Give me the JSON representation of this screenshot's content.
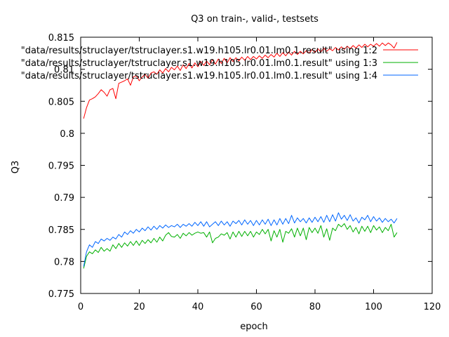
{
  "chart_data": {
    "type": "line",
    "title": "Q3 on train-, valid-, testsets",
    "xlabel": "epoch",
    "ylabel": "Q3",
    "xlim": [
      0,
      120
    ],
    "ylim": [
      0.775,
      0.815
    ],
    "x_ticks": [
      "0",
      "20",
      "40",
      "60",
      "80",
      "100",
      "120"
    ],
    "y_ticks": [
      "0.775",
      "0.78",
      "0.785",
      "0.79",
      "0.795",
      "0.8",
      "0.805",
      "0.81",
      "0.815"
    ],
    "grid": false,
    "legend_position": "top-right",
    "series": [
      {
        "name": "\"data/results/struclayer/tstruclayer.s1.w19.h105.lr0.01.lm0.1.result\" using 1:2",
        "color": "#ff0000",
        "x": [
          1,
          2,
          3,
          4,
          5,
          6,
          7,
          8,
          9,
          10,
          11,
          12,
          13,
          14,
          15,
          16,
          17,
          18,
          19,
          20,
          21,
          22,
          23,
          24,
          25,
          26,
          27,
          28,
          29,
          30,
          31,
          32,
          33,
          34,
          35,
          36,
          37,
          38,
          39,
          40,
          41,
          42,
          43,
          44,
          45,
          46,
          47,
          48,
          49,
          50,
          51,
          52,
          53,
          54,
          55,
          56,
          57,
          58,
          59,
          60,
          61,
          62,
          63,
          64,
          65,
          66,
          67,
          68,
          69,
          70,
          71,
          72,
          73,
          74,
          75,
          76,
          77,
          78,
          79,
          80,
          81,
          82,
          83,
          84,
          85,
          86,
          87,
          88,
          89,
          90,
          91,
          92,
          93,
          94,
          95,
          96,
          97,
          98,
          99,
          100,
          101,
          102,
          103,
          104,
          105,
          106,
          107,
          108
        ],
        "values": [
          0.8023,
          0.804,
          0.8052,
          0.8054,
          0.8057,
          0.8062,
          0.8068,
          0.8064,
          0.8058,
          0.8068,
          0.807,
          0.8054,
          0.8078,
          0.808,
          0.8082,
          0.8085,
          0.8075,
          0.8088,
          0.809,
          0.8082,
          0.8088,
          0.8092,
          0.8086,
          0.8094,
          0.8096,
          0.8092,
          0.8099,
          0.8094,
          0.8101,
          0.8096,
          0.8103,
          0.8099,
          0.8105,
          0.8098,
          0.8107,
          0.8101,
          0.8109,
          0.8102,
          0.811,
          0.8104,
          0.8112,
          0.8106,
          0.8113,
          0.8107,
          0.8115,
          0.8108,
          0.8116,
          0.8109,
          0.8117,
          0.811,
          0.8118,
          0.8112,
          0.8118,
          0.8113,
          0.8119,
          0.8114,
          0.812,
          0.8115,
          0.812,
          0.8116,
          0.8121,
          0.8117,
          0.8122,
          0.8118,
          0.8123,
          0.8119,
          0.8125,
          0.812,
          0.8126,
          0.8121,
          0.8127,
          0.8122,
          0.8128,
          0.8123,
          0.8128,
          0.8124,
          0.8129,
          0.8125,
          0.8131,
          0.8126,
          0.8132,
          0.8127,
          0.8133,
          0.8128,
          0.8132,
          0.8129,
          0.8134,
          0.813,
          0.8135,
          0.8131,
          0.8136,
          0.8132,
          0.8137,
          0.8133,
          0.8138,
          0.8134,
          0.8139,
          0.8135,
          0.8139,
          0.8136,
          0.814,
          0.8136,
          0.8141,
          0.8137,
          0.8141,
          0.8138,
          0.8133,
          0.8142
        ]
      },
      {
        "name": "\"data/results/struclayer/tstruclayer.s1.w19.h105.lr0.01.lm0.1.result\" using 1:3",
        "color": "#00b000",
        "x": [
          1,
          2,
          3,
          4,
          5,
          6,
          7,
          8,
          9,
          10,
          11,
          12,
          13,
          14,
          15,
          16,
          17,
          18,
          19,
          20,
          21,
          22,
          23,
          24,
          25,
          26,
          27,
          28,
          29,
          30,
          31,
          32,
          33,
          34,
          35,
          36,
          37,
          38,
          39,
          40,
          41,
          42,
          43,
          44,
          45,
          46,
          47,
          48,
          49,
          50,
          51,
          52,
          53,
          54,
          55,
          56,
          57,
          58,
          59,
          60,
          61,
          62,
          63,
          64,
          65,
          66,
          67,
          68,
          69,
          70,
          71,
          72,
          73,
          74,
          75,
          76,
          77,
          78,
          79,
          80,
          81,
          82,
          83,
          84,
          85,
          86,
          87,
          88,
          89,
          90,
          91,
          92,
          93,
          94,
          95,
          96,
          97,
          98,
          99,
          100,
          101,
          102,
          103,
          104,
          105,
          106,
          107,
          108
        ],
        "values": [
          0.7789,
          0.7808,
          0.7815,
          0.7812,
          0.7818,
          0.7814,
          0.7822,
          0.7816,
          0.782,
          0.7816,
          0.7826,
          0.782,
          0.7828,
          0.7822,
          0.7829,
          0.7824,
          0.7831,
          0.7825,
          0.7832,
          0.7825,
          0.7833,
          0.7828,
          0.7834,
          0.7829,
          0.7836,
          0.783,
          0.7838,
          0.7832,
          0.7841,
          0.7845,
          0.7839,
          0.7838,
          0.7842,
          0.7836,
          0.7844,
          0.784,
          0.7845,
          0.7841,
          0.7844,
          0.7846,
          0.7844,
          0.7845,
          0.7838,
          0.7846,
          0.7829,
          0.7836,
          0.7838,
          0.7843,
          0.7841,
          0.7845,
          0.7835,
          0.7846,
          0.7838,
          0.7847,
          0.7839,
          0.7847,
          0.784,
          0.7847,
          0.7838,
          0.7846,
          0.7842,
          0.785,
          0.7843,
          0.785,
          0.7832,
          0.7848,
          0.7838,
          0.785,
          0.783,
          0.7847,
          0.7844,
          0.7851,
          0.7838,
          0.7852,
          0.784,
          0.7852,
          0.7834,
          0.7853,
          0.7845,
          0.7852,
          0.7844,
          0.7856,
          0.7838,
          0.7851,
          0.7833,
          0.7852,
          0.7848,
          0.7858,
          0.7854,
          0.7859,
          0.785,
          0.7856,
          0.7846,
          0.7853,
          0.7843,
          0.7855,
          0.7847,
          0.7855,
          0.7845,
          0.7856,
          0.7849,
          0.7854,
          0.7845,
          0.7853,
          0.7848,
          0.7858,
          0.7838,
          0.7845
        ]
      },
      {
        "name": "\"data/results/struclayer/tstruclayer.s1.w19.h105.lr0.01.lm0.1.result\" using 1:4",
        "color": "#0066ff",
        "x": [
          1,
          2,
          3,
          4,
          5,
          6,
          7,
          8,
          9,
          10,
          11,
          12,
          13,
          14,
          15,
          16,
          17,
          18,
          19,
          20,
          21,
          22,
          23,
          24,
          25,
          26,
          27,
          28,
          29,
          30,
          31,
          32,
          33,
          34,
          35,
          36,
          37,
          38,
          39,
          40,
          41,
          42,
          43,
          44,
          45,
          46,
          47,
          48,
          49,
          50,
          51,
          52,
          53,
          54,
          55,
          56,
          57,
          58,
          59,
          60,
          61,
          62,
          63,
          64,
          65,
          66,
          67,
          68,
          69,
          70,
          71,
          72,
          73,
          74,
          75,
          76,
          77,
          78,
          79,
          80,
          81,
          82,
          83,
          84,
          85,
          86,
          87,
          88,
          89,
          90,
          91,
          92,
          93,
          94,
          95,
          96,
          97,
          98,
          99,
          100,
          101,
          102,
          103,
          104,
          105,
          106,
          107,
          108
        ],
        "values": [
          0.7792,
          0.7815,
          0.7826,
          0.7822,
          0.7831,
          0.7828,
          0.7835,
          0.7832,
          0.7836,
          0.7833,
          0.7838,
          0.7835,
          0.7842,
          0.7838,
          0.7846,
          0.7842,
          0.7848,
          0.7844,
          0.785,
          0.7846,
          0.7852,
          0.7848,
          0.7854,
          0.7849,
          0.7855,
          0.785,
          0.7856,
          0.7852,
          0.7857,
          0.7853,
          0.7856,
          0.7854,
          0.7858,
          0.7853,
          0.7858,
          0.7855,
          0.7859,
          0.7855,
          0.7861,
          0.7856,
          0.7862,
          0.7855,
          0.7862,
          0.7854,
          0.7858,
          0.7862,
          0.7856,
          0.7863,
          0.7857,
          0.7862,
          0.7855,
          0.7863,
          0.7859,
          0.7864,
          0.7857,
          0.7865,
          0.7858,
          0.7864,
          0.7856,
          0.7864,
          0.7857,
          0.7865,
          0.7858,
          0.7866,
          0.7856,
          0.7865,
          0.7857,
          0.7867,
          0.7858,
          0.7867,
          0.7859,
          0.7872,
          0.786,
          0.7868,
          0.7862,
          0.7867,
          0.786,
          0.7868,
          0.7861,
          0.7869,
          0.7862,
          0.787,
          0.7861,
          0.7872,
          0.7862,
          0.7873,
          0.7863,
          0.7876,
          0.7866,
          0.7872,
          0.7864,
          0.7873,
          0.7863,
          0.7868,
          0.786,
          0.7869,
          0.7865,
          0.7872,
          0.7862,
          0.787,
          0.7863,
          0.7868,
          0.7861,
          0.7867,
          0.7862,
          0.7866,
          0.786,
          0.7867
        ]
      }
    ]
  }
}
